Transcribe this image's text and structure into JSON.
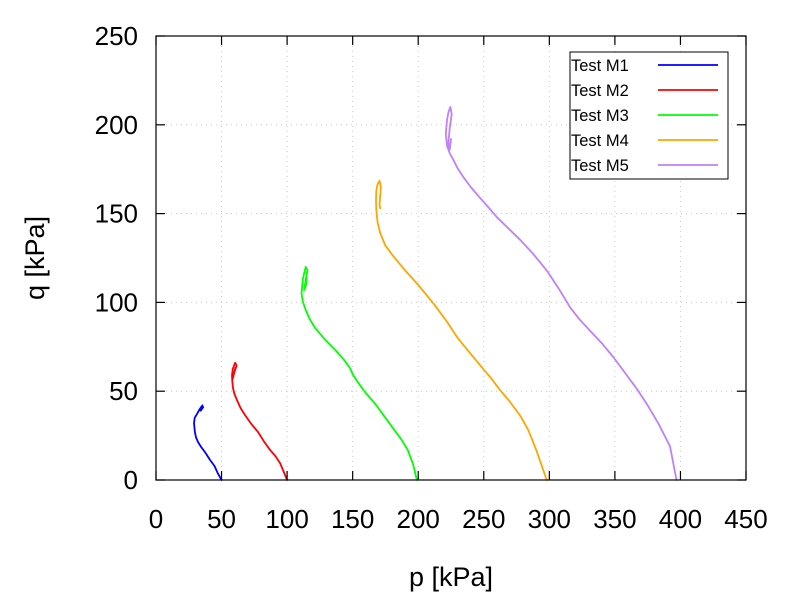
{
  "chart_data": {
    "type": "line",
    "title": "",
    "xlabel": "p [kPa]",
    "ylabel": "q [kPa]",
    "xlim": [
      0,
      450
    ],
    "ylim": [
      0,
      250
    ],
    "xticks": [
      0,
      50,
      100,
      150,
      200,
      250,
      300,
      350,
      400,
      450
    ],
    "yticks": [
      0,
      50,
      100,
      150,
      200,
      250
    ],
    "xtick_labels": [
      "0",
      "50",
      "100",
      "150",
      "200",
      "250",
      "300",
      "350",
      "400",
      "450"
    ],
    "ytick_labels": [
      "0",
      "50",
      "100",
      "150",
      "200",
      "250"
    ],
    "grid": true,
    "legend_position": "top-right",
    "series": [
      {
        "name": "Test M1",
        "color": "#0000ff",
        "x": [
          50,
          47,
          44.6,
          41,
          37.8,
          34.5,
          32,
          30.5,
          29.7,
          29,
          29.5,
          31.3,
          33,
          35.1,
          36,
          34,
          35.5
        ],
        "y": [
          0,
          4,
          7.9,
          11.5,
          15.2,
          18.5,
          21.4,
          24,
          27,
          32,
          35,
          37.2,
          39.5,
          41.7,
          41,
          39,
          42
        ]
      },
      {
        "name": "Test M2",
        "color": "#ff0000",
        "x": [
          100,
          97.5,
          94.6,
          91,
          87,
          82.5,
          77.8,
          72.8,
          67.9,
          64.5,
          61.8,
          59.8,
          58.7,
          58.2,
          58,
          58.6,
          60.3,
          61.5,
          59.5,
          58.5,
          60.5
        ],
        "y": [
          0,
          4.5,
          9.6,
          13.5,
          16.9,
          21.5,
          27,
          31.5,
          36.6,
          40.5,
          45,
          48.5,
          51.8,
          55.5,
          59,
          62.5,
          66,
          64.5,
          60,
          57,
          63
        ]
      },
      {
        "name": "Test M3",
        "color": "#00ff00",
        "x": [
          199,
          196,
          192,
          187,
          182,
          175,
          167,
          160,
          154,
          150,
          148,
          143,
          137,
          129,
          121,
          117,
          114,
          112,
          111,
          111.5,
          112,
          113,
          114.2,
          115.5,
          114,
          113,
          114.5,
          115
        ],
        "y": [
          0,
          9,
          17,
          23,
          28,
          35,
          43,
          49,
          55,
          59.5,
          63,
          68,
          73,
          79,
          86,
          91,
          96,
          100.5,
          105,
          109,
          113,
          116.5,
          120,
          118,
          112,
          107,
          110,
          117
        ]
      },
      {
        "name": "Test M4",
        "color": "#ffa500",
        "x": [
          298,
          290,
          284,
          278,
          270,
          262,
          256,
          249,
          240,
          230,
          226,
          222,
          212,
          201,
          190,
          181,
          175,
          171,
          169,
          168,
          167.8,
          168,
          169,
          170.5,
          171.5,
          171,
          170.5,
          171
        ],
        "y": [
          0,
          17,
          28,
          36,
          44,
          51,
          57,
          63,
          71,
          80,
          84.5,
          89,
          99,
          109,
          118,
          126,
          132,
          139,
          145,
          152,
          157,
          163,
          166.5,
          168.5,
          165,
          160,
          155,
          153
        ]
      },
      {
        "name": "Test M5",
        "color": "#bf80ff",
        "x": [
          397,
          392,
          383,
          375,
          367,
          358,
          349,
          340,
          331,
          323,
          316,
          307,
          298,
          288,
          278,
          269,
          260,
          253,
          247,
          240,
          234,
          230,
          227,
          224,
          222,
          221,
          221.5,
          222,
          223,
          224.5,
          225.5,
          224,
          223,
          224,
          225
        ],
        "y": [
          0,
          19,
          32,
          42,
          51,
          60,
          69,
          77,
          84,
          90.5,
          97,
          108,
          118,
          127,
          135,
          141.5,
          148,
          154,
          159,
          165,
          171,
          175.5,
          180,
          184,
          188,
          195,
          199,
          203,
          207,
          210,
          206,
          198,
          190,
          186,
          192
        ]
      }
    ]
  }
}
